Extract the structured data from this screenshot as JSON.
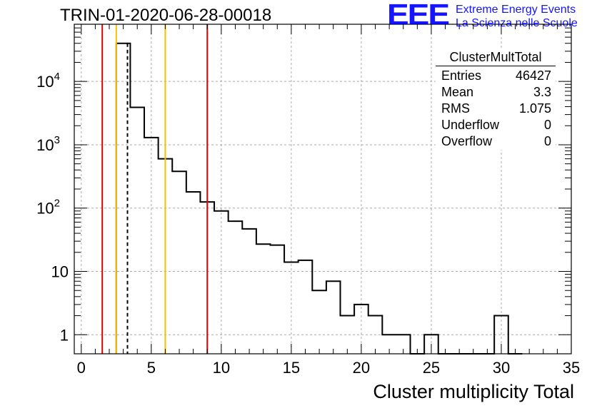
{
  "header": {
    "title": "TRIN-01-2020-06-28-00018",
    "logo_mark": "EEE",
    "logo_line1": "Extreme Energy Events",
    "logo_line2": "La Scienza nelle Scuole",
    "logo_color": "#1515ff"
  },
  "stats": {
    "name": "ClusterMultTotal",
    "rows": [
      {
        "label": "Entries",
        "value": "46427"
      },
      {
        "label": "Mean",
        "value": "3.3"
      },
      {
        "label": "RMS",
        "value": "1.075"
      },
      {
        "label": "Underflow",
        "value": "0"
      },
      {
        "label": "Overflow",
        "value": "0"
      }
    ]
  },
  "chart_data": {
    "type": "histogram",
    "xlabel": "Cluster multiplicity Total",
    "ylabel": "",
    "xlim": [
      -0.5,
      35.0
    ],
    "ylim": [
      0.5,
      80000
    ],
    "ylog": true,
    "grid": true,
    "bin_width": 1,
    "bin_low_edges": [
      2.5,
      3.5,
      4.5,
      5.5,
      6.5,
      7.5,
      8.5,
      9.5,
      10.5,
      11.5,
      12.5,
      13.5,
      14.5,
      15.5,
      16.5,
      17.5,
      18.5,
      19.5,
      20.5,
      21.5,
      22.5,
      23.5,
      24.5,
      25.5,
      26.5,
      27.5,
      28.5,
      29.5,
      30.5
    ],
    "counts": [
      40000,
      3900,
      1300,
      600,
      380,
      180,
      125,
      90,
      62,
      47,
      27,
      26,
      14,
      15,
      5,
      7,
      2,
      3,
      2,
      1,
      1,
      0,
      1,
      0,
      0,
      0,
      0,
      2,
      0
    ],
    "x_ticks": [
      0,
      5,
      10,
      15,
      20,
      25,
      30,
      35
    ],
    "y_ticks": [
      {
        "value": 1,
        "base": "1",
        "exp": ""
      },
      {
        "value": 10,
        "base": "10",
        "exp": ""
      },
      {
        "value": 100,
        "base": "10",
        "exp": "2"
      },
      {
        "value": 1000,
        "base": "10",
        "exp": "3"
      },
      {
        "value": 10000,
        "base": "10",
        "exp": "4"
      }
    ],
    "vertical_lines": [
      {
        "x": 1.5,
        "color": "#e00000",
        "style": "solid"
      },
      {
        "x": 2.5,
        "color": "#f5c000",
        "style": "solid"
      },
      {
        "x": 3.3,
        "color": "#000000",
        "style": "dashed"
      },
      {
        "x": 6.0,
        "color": "#f5c000",
        "style": "solid"
      },
      {
        "x": 9.0,
        "color": "#e00000",
        "style": "solid"
      }
    ]
  }
}
